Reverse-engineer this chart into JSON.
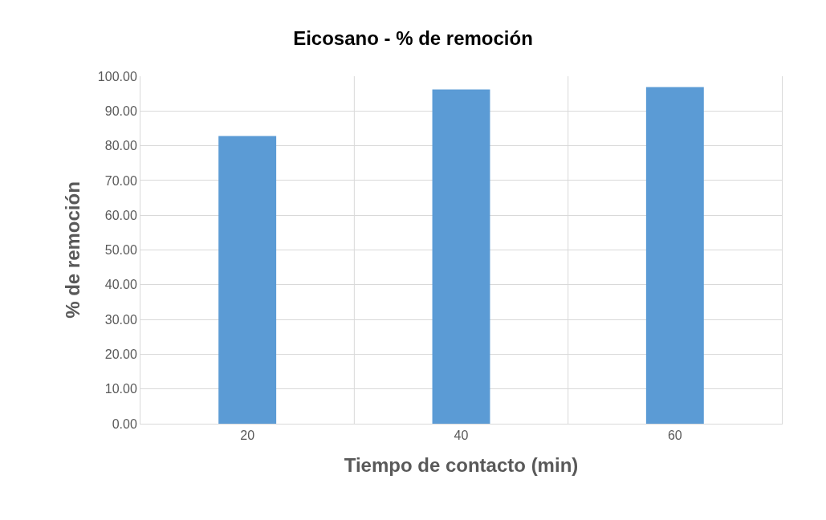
{
  "chart_data": {
    "type": "bar",
    "title": "Eicosano - % de remoción",
    "xlabel": "Tiempo de contacto (min)",
    "ylabel": "% de remoción",
    "categories": [
      "20",
      "40",
      "60"
    ],
    "values": [
      82.8,
      96.2,
      96.9
    ],
    "color": "#5b9bd5",
    "ylim": [
      0,
      100
    ],
    "yticks": [
      {
        "value": 0,
        "label": "0.00"
      },
      {
        "value": 10,
        "label": "10.00"
      },
      {
        "value": 20,
        "label": "20.00"
      },
      {
        "value": 30,
        "label": "30.00"
      },
      {
        "value": 40,
        "label": "40.00"
      },
      {
        "value": 50,
        "label": "50.00"
      },
      {
        "value": 60,
        "label": "60.00"
      },
      {
        "value": 70,
        "label": "70.00"
      },
      {
        "value": 80,
        "label": "80.00"
      },
      {
        "value": 90,
        "label": "90.00"
      },
      {
        "value": 100,
        "label": "100.00"
      }
    ],
    "grid": true
  }
}
